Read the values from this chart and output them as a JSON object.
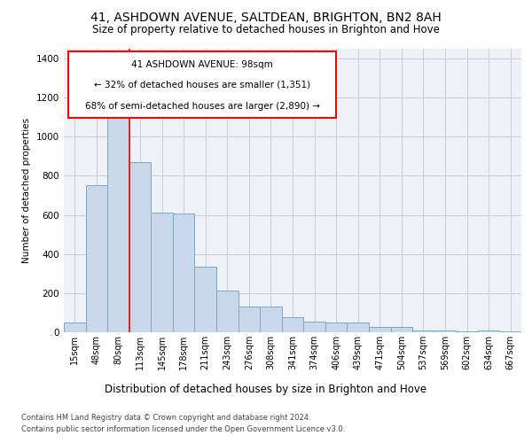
{
  "title1": "41, ASHDOWN AVENUE, SALTDEAN, BRIGHTON, BN2 8AH",
  "title2": "Size of property relative to detached houses in Brighton and Hove",
  "xlabel": "Distribution of detached houses by size in Brighton and Hove",
  "ylabel": "Number of detached properties",
  "footnote1": "Contains HM Land Registry data © Crown copyright and database right 2024.",
  "footnote2": "Contains public sector information licensed under the Open Government Licence v3.0.",
  "annotation_line1": "41 ASHDOWN AVENUE: 98sqm",
  "annotation_line2": "← 32% of detached houses are smaller (1,351)",
  "annotation_line3": "68% of semi-detached houses are larger (2,890) →",
  "bar_color": "#c8d8ea",
  "bar_edge_color": "#7aaac8",
  "categories": [
    "15sqm",
    "48sqm",
    "80sqm",
    "113sqm",
    "145sqm",
    "178sqm",
    "211sqm",
    "243sqm",
    "276sqm",
    "308sqm",
    "341sqm",
    "374sqm",
    "406sqm",
    "439sqm",
    "471sqm",
    "504sqm",
    "537sqm",
    "569sqm",
    "602sqm",
    "634sqm",
    "667sqm"
  ],
  "values": [
    50,
    750,
    1100,
    870,
    610,
    605,
    335,
    215,
    130,
    130,
    75,
    55,
    50,
    50,
    28,
    28,
    10,
    8,
    5,
    8,
    5
  ],
  "ylim": [
    0,
    1450
  ],
  "yticks": [
    0,
    200,
    400,
    600,
    800,
    1000,
    1200,
    1400
  ],
  "bg_color": "#eef2f7",
  "grid_color": "#c0c8d4"
}
